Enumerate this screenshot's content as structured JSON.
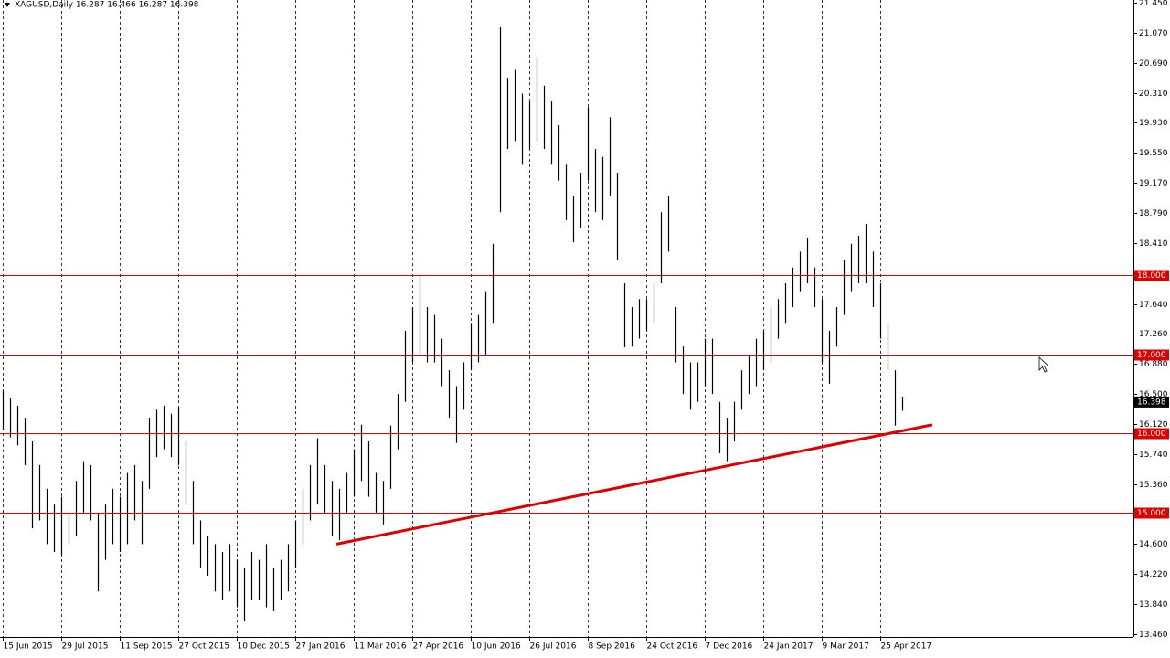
{
  "chart_data": {
    "type": "ohlc-bars",
    "title": "XAGUSD,Daily  16.287 16.466 16.287 16.398",
    "color": "#000000",
    "x": [
      0,
      4,
      8,
      12,
      16,
      20,
      24,
      28,
      32,
      36,
      40,
      44,
      48,
      52,
      56,
      60,
      64,
      68,
      72,
      76,
      80,
      84,
      88,
      92,
      96,
      100,
      104,
      108,
      112,
      116,
      120,
      124,
      128,
      132,
      136,
      140,
      144,
      148,
      152,
      156,
      160,
      164,
      168,
      172,
      176,
      180,
      184,
      188,
      192,
      196,
      200,
      204,
      208,
      212,
      216,
      220,
      224,
      228,
      232,
      236,
      240,
      244,
      248,
      252,
      256,
      260,
      264,
      268,
      272,
      276,
      280,
      284,
      288,
      292,
      296,
      300,
      304,
      308,
      312,
      316,
      320,
      324,
      328,
      332,
      336,
      340,
      344,
      348,
      352,
      356,
      360,
      364,
      368,
      372,
      376,
      380,
      384,
      388,
      392,
      396,
      400,
      404,
      408,
      412,
      416,
      420,
      424,
      428,
      432,
      436,
      440,
      444,
      448,
      452,
      456,
      460,
      464,
      468,
      472,
      476,
      480,
      484,
      488,
      492
    ],
    "high": [
      16.55,
      16.45,
      16.35,
      16.2,
      15.9,
      15.6,
      15.3,
      15.1,
      15.2,
      15.0,
      15.4,
      15.65,
      15.6,
      15.0,
      15.1,
      15.3,
      15.2,
      15.5,
      15.6,
      15.4,
      16.2,
      16.3,
      16.35,
      16.25,
      16.34,
      15.9,
      15.4,
      14.9,
      14.7,
      14.6,
      14.5,
      14.6,
      14.4,
      14.3,
      14.5,
      14.4,
      14.6,
      14.3,
      14.4,
      14.6,
      14.9,
      15.3,
      15.6,
      15.94,
      15.6,
      15.4,
      15.3,
      15.5,
      15.8,
      16.11,
      15.9,
      15.5,
      15.4,
      16.1,
      16.5,
      17.3,
      17.6,
      18.02,
      17.6,
      17.5,
      17.2,
      16.8,
      16.6,
      16.9,
      17.4,
      17.5,
      17.8,
      18.4,
      21.14,
      20.5,
      20.6,
      20.3,
      20.2,
      20.77,
      20.4,
      20.2,
      19.9,
      19.4,
      19.0,
      19.3,
      20.13,
      19.6,
      19.5,
      20.0,
      19.3,
      17.9,
      17.6,
      17.7,
      17.7,
      17.9,
      18.8,
      19.0,
      17.6,
      17.1,
      16.9,
      16.9,
      17.2,
      17.2,
      16.4,
      16.2,
      16.4,
      16.8,
      17.0,
      17.2,
      17.3,
      17.6,
      17.7,
      17.9,
      18.1,
      18.3,
      18.48,
      18.1,
      17.7,
      17.3,
      17.6,
      18.2,
      18.4,
      18.5,
      18.65,
      18.3,
      17.9,
      17.4,
      16.8,
      16.466
    ],
    "low": [
      16.05,
      15.95,
      15.85,
      15.6,
      14.8,
      14.9,
      14.6,
      14.5,
      14.45,
      14.6,
      14.7,
      15.0,
      14.9,
      14.0,
      14.4,
      14.6,
      14.5,
      14.6,
      14.9,
      14.6,
      15.3,
      15.7,
      15.8,
      15.7,
      15.6,
      15.1,
      14.6,
      14.3,
      14.2,
      14.0,
      13.9,
      14.0,
      13.8,
      13.62,
      13.9,
      13.9,
      13.8,
      13.75,
      13.9,
      14.0,
      14.3,
      14.6,
      14.9,
      15.1,
      15.0,
      14.7,
      14.65,
      15.0,
      15.2,
      15.4,
      15.2,
      15.0,
      14.85,
      15.3,
      15.8,
      16.4,
      16.9,
      17.0,
      16.9,
      16.9,
      16.6,
      16.2,
      15.88,
      16.3,
      16.8,
      16.9,
      17.0,
      17.4,
      18.8,
      19.6,
      19.7,
      19.4,
      19.6,
      19.7,
      19.6,
      19.4,
      19.2,
      18.7,
      18.42,
      18.6,
      19.2,
      18.8,
      18.7,
      19.0,
      18.2,
      17.09,
      17.1,
      17.2,
      17.3,
      17.4,
      17.9,
      18.3,
      16.9,
      16.5,
      16.3,
      16.4,
      16.6,
      16.5,
      15.75,
      15.65,
      15.9,
      16.3,
      16.5,
      16.6,
      16.8,
      16.9,
      17.2,
      17.4,
      17.6,
      17.8,
      17.9,
      17.6,
      16.9,
      16.63,
      17.1,
      17.5,
      17.8,
      17.9,
      17.9,
      17.6,
      17.2,
      16.8,
      16.1,
      16.287
    ],
    "xlim": [
      -1.5,
      618.5
    ],
    "ylim": [
      13.425,
      21.485
    ],
    "xticks": [
      {
        "value": 0,
        "label": "15 Jun 2015"
      },
      {
        "value": 32,
        "label": "29 Jul 2015"
      },
      {
        "value": 64,
        "label": "11 Sep 2015"
      },
      {
        "value": 96,
        "label": "27 Oct 2015"
      },
      {
        "value": 128,
        "label": "10 Dec 2015"
      },
      {
        "value": 160,
        "label": "27 Jan 2016"
      },
      {
        "value": 192,
        "label": "11 Mar 2016"
      },
      {
        "value": 224,
        "label": "27 Apr 2016"
      },
      {
        "value": 256,
        "label": "10 Jun 2016"
      },
      {
        "value": 288,
        "label": "26 Jul 2016"
      },
      {
        "value": 320,
        "label": "8 Sep 2016"
      },
      {
        "value": 352,
        "label": "24 Oct 2016"
      },
      {
        "value": 384,
        "label": "7 Dec 2016"
      },
      {
        "value": 416,
        "label": "24 Jan 2017"
      },
      {
        "value": 448,
        "label": "9 Mar 2017"
      },
      {
        "value": 480,
        "label": "25 Apr 2017"
      }
    ],
    "yticks": [
      {
        "value": 21.45,
        "label": "21.450"
      },
      {
        "value": 21.07,
        "label": "21.070"
      },
      {
        "value": 20.69,
        "label": "20.690"
      },
      {
        "value": 20.31,
        "label": "20.310"
      },
      {
        "value": 19.93,
        "label": "19.930"
      },
      {
        "value": 19.55,
        "label": "19.550"
      },
      {
        "value": 19.17,
        "label": "19.170"
      },
      {
        "value": 18.79,
        "label": "18.790"
      },
      {
        "value": 18.41,
        "label": "18.410"
      },
      {
        "value": 17.64,
        "label": "17.640"
      },
      {
        "value": 17.26,
        "label": "17.260"
      },
      {
        "value": 16.88,
        "label": "16.880"
      },
      {
        "value": 16.5,
        "label": "16.500"
      },
      {
        "value": 16.12,
        "label": "16.120"
      },
      {
        "value": 15.74,
        "label": "15.740"
      },
      {
        "value": 15.36,
        "label": "15.360"
      },
      {
        "value": 14.6,
        "label": "14.600"
      },
      {
        "value": 14.22,
        "label": "14.220"
      },
      {
        "value": 13.84,
        "label": "13.840"
      },
      {
        "value": 13.46,
        "label": "13.460"
      }
    ],
    "hlines": [
      {
        "value": 18,
        "label": "18.000"
      },
      {
        "value": 17,
        "label": "17.000"
      },
      {
        "value": 16,
        "label": "16.000"
      },
      {
        "value": 15,
        "label": "15.000"
      }
    ],
    "hline_color": "#e00000",
    "last_price": 16.398,
    "trendline": {
      "x": [
        182.5,
        508.5
      ],
      "y": [
        14.6,
        16.11
      ],
      "color": "#e00000"
    },
    "grid": true
  }
}
